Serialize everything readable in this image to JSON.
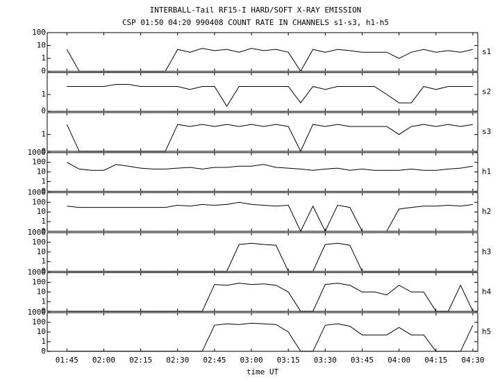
{
  "chart_data": {
    "type": "line",
    "scale": "symlog",
    "color": "#000000",
    "title": "INTERBALL-Tail RF15-I HARD/SOFT X-RAY EMISSION",
    "subtitle": "CSP 01:50 04:20 990408  COUNT RATE IN CHANNELS s1-s3, h1-h5",
    "x_label": "time UT",
    "xlim": [
      "01:37",
      "04:32"
    ],
    "xticks": [
      "01:45",
      "02:00",
      "02:15",
      "02:30",
      "02:45",
      "03:00",
      "03:15",
      "03:30",
      "03:45",
      "04:00",
      "04:15",
      "04:30"
    ],
    "x": [
      "01:40",
      "01:45",
      "01:50",
      "01:55",
      "02:00",
      "02:05",
      "02:10",
      "02:15",
      "02:20",
      "02:25",
      "02:30",
      "02:35",
      "02:40",
      "02:45",
      "02:50",
      "02:55",
      "03:00",
      "03:05",
      "03:10",
      "03:15",
      "03:20",
      "03:25",
      "03:30",
      "03:35",
      "03:40",
      "03:45",
      "03:50",
      "03:55",
      "04:00",
      "04:05",
      "04:10",
      "04:15",
      "04:20",
      "04:25",
      "04:30"
    ],
    "series": [
      {
        "name": "s1",
        "ylim": [
          0,
          100
        ],
        "yticks": [
          0,
          1,
          10,
          100
        ],
        "values": [
          null,
          5,
          0,
          0,
          0,
          0,
          0,
          0,
          0,
          0,
          5,
          3,
          6,
          4,
          5,
          3,
          6,
          4,
          5,
          3,
          0,
          5,
          3,
          5,
          4,
          3,
          3,
          3,
          1,
          3,
          5,
          3,
          4,
          3,
          5
        ]
      },
      {
        "name": "s2",
        "ylim": [
          0,
          20
        ],
        "yticks": [
          0,
          1
        ],
        "values": [
          null,
          3,
          3,
          3,
          3,
          4,
          4,
          3,
          3,
          3,
          3,
          2,
          3,
          3,
          0.3,
          3,
          3,
          3,
          3,
          3,
          0.5,
          3,
          2,
          3,
          3,
          3,
          3,
          1,
          0.5,
          0.5,
          3,
          2,
          3,
          3,
          3
        ]
      },
      {
        "name": "s3",
        "ylim": [
          0,
          20
        ],
        "yticks": [
          0,
          1
        ],
        "values": [
          null,
          4,
          0,
          0,
          0,
          0,
          0,
          0,
          0,
          0,
          4,
          3,
          4,
          3,
          4,
          3,
          4,
          3,
          4,
          3,
          0,
          4,
          3,
          4,
          3,
          3,
          3,
          3,
          1,
          3,
          4,
          3,
          4,
          3,
          4
        ]
      },
      {
        "name": "h1",
        "ylim": [
          0,
          1000
        ],
        "yticks": [
          0,
          1,
          10,
          100,
          1000
        ],
        "values": [
          null,
          100,
          20,
          15,
          15,
          60,
          40,
          25,
          20,
          20,
          25,
          30,
          20,
          30,
          30,
          40,
          40,
          60,
          30,
          25,
          20,
          15,
          20,
          25,
          15,
          20,
          15,
          15,
          15,
          20,
          15,
          15,
          20,
          25,
          40
        ]
      },
      {
        "name": "h2",
        "ylim": [
          0,
          1000
        ],
        "yticks": [
          0,
          1,
          10,
          100,
          1000
        ],
        "values": [
          null,
          40,
          30,
          30,
          30,
          30,
          30,
          30,
          30,
          30,
          50,
          40,
          60,
          50,
          60,
          100,
          60,
          50,
          40,
          50,
          0,
          40,
          0,
          50,
          30,
          0,
          0,
          0,
          20,
          30,
          40,
          40,
          50,
          40,
          60
        ]
      },
      {
        "name": "h3",
        "ylim": [
          0,
          1000
        ],
        "yticks": [
          0,
          1,
          10,
          100,
          1000
        ],
        "values": [
          null,
          0,
          0,
          0,
          0,
          0,
          0,
          0,
          0,
          0,
          0,
          0,
          0,
          0,
          0,
          60,
          80,
          60,
          50,
          0,
          0,
          0,
          60,
          80,
          50,
          0,
          0,
          0,
          0,
          0,
          0,
          0,
          0,
          0,
          0
        ]
      },
      {
        "name": "h4",
        "ylim": [
          0,
          1000
        ],
        "yticks": [
          0,
          1,
          10,
          100,
          1000
        ],
        "values": [
          null,
          0,
          0,
          0,
          0,
          0,
          0,
          0,
          0,
          0,
          0,
          0,
          0,
          60,
          50,
          80,
          60,
          70,
          50,
          10,
          0,
          0,
          60,
          80,
          50,
          10,
          10,
          5,
          50,
          10,
          10,
          0,
          0,
          50,
          0
        ]
      },
      {
        "name": "h5",
        "ylim": [
          0,
          1000
        ],
        "yticks": [
          0,
          1,
          10,
          100,
          1000
        ],
        "values": [
          null,
          0,
          0,
          0,
          0,
          0,
          0,
          0,
          0,
          0,
          0,
          0,
          0,
          50,
          70,
          60,
          80,
          70,
          60,
          10,
          0,
          0,
          50,
          70,
          40,
          5,
          5,
          5,
          30,
          5,
          5,
          0,
          0,
          0,
          50
        ]
      }
    ]
  }
}
